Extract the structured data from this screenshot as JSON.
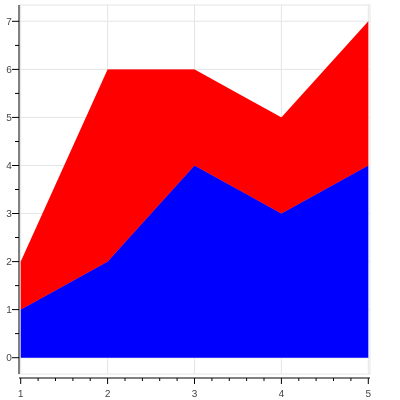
{
  "chart_data": {
    "type": "area",
    "stacked": true,
    "x": [
      1,
      2,
      3,
      4,
      5
    ],
    "xlim": [
      0.98,
      5.02
    ],
    "ylim": [
      -0.34,
      7.34
    ],
    "x_ticks": [
      1,
      2,
      3,
      4,
      5
    ],
    "y_ticks": [
      0,
      1,
      2,
      3,
      4,
      5,
      6,
      7
    ],
    "grid": true,
    "series": [
      {
        "values": [
          1,
          2,
          4,
          3,
          4
        ],
        "color": "#0000ff"
      },
      {
        "values": [
          1,
          4,
          2,
          2,
          3
        ],
        "color": "#ff0000"
      }
    ]
  }
}
